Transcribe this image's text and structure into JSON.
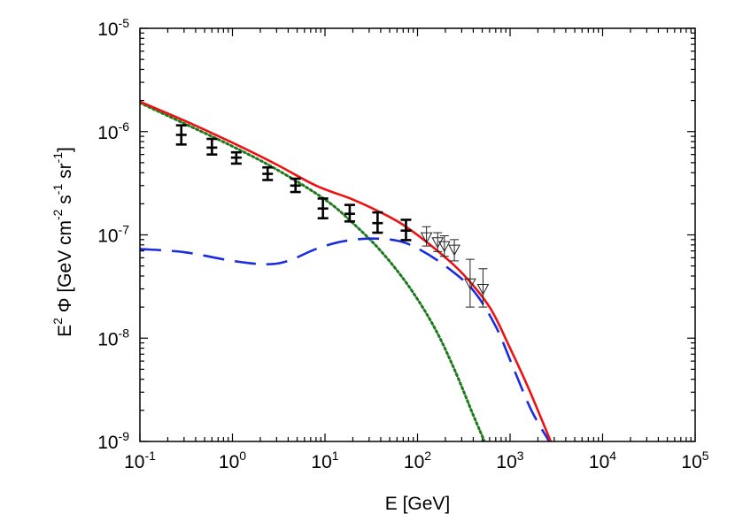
{
  "chart_data": {
    "type": "line",
    "xscale": "log",
    "yscale": "log",
    "xlim": [
      0.1,
      100000
    ],
    "ylim": [
      1e-09,
      1e-05
    ],
    "grid": false,
    "legend": "none",
    "xlabel": "E [GeV]",
    "ylabel": {
      "parts": [
        "E",
        "2",
        " Φ [GeV cm",
        "-2",
        " s",
        "-1",
        " sr",
        "-1",
        "]"
      ]
    },
    "x_ticks": [
      {
        "base": "10",
        "exp": "-1",
        "value": 0.1
      },
      {
        "base": "10",
        "exp": "0",
        "value": 1
      },
      {
        "base": "10",
        "exp": "1",
        "value": 10
      },
      {
        "base": "10",
        "exp": "2",
        "value": 100
      },
      {
        "base": "10",
        "exp": "3",
        "value": 1000
      },
      {
        "base": "10",
        "exp": "4",
        "value": 10000
      },
      {
        "base": "10",
        "exp": "5",
        "value": 100000
      }
    ],
    "y_ticks": [
      {
        "base": "10",
        "exp": "-9",
        "value": 1e-09
      },
      {
        "base": "10",
        "exp": "-8",
        "value": 1e-08
      },
      {
        "base": "10",
        "exp": "-7",
        "value": 1e-07
      },
      {
        "base": "10",
        "exp": "-6",
        "value": 1e-06
      },
      {
        "base": "10",
        "exp": "-5",
        "value": 1e-05
      }
    ],
    "series": [
      {
        "style": "dotted",
        "color": "#1e7a1e",
        "points": [
          [
            0.1,
            1.9e-06
          ],
          [
            0.3,
            1.2e-06
          ],
          [
            1,
            7.2e-07
          ],
          [
            3,
            4.3e-07
          ],
          [
            10,
            2.2e-07
          ],
          [
            20,
            1.3e-07
          ],
          [
            40,
            7e-08
          ],
          [
            80,
            3.2e-08
          ],
          [
            150,
            1.3e-08
          ],
          [
            250,
            5e-09
          ],
          [
            400,
            1.8e-09
          ],
          [
            530,
            1e-09
          ]
        ]
      },
      {
        "style": "dashed",
        "color": "#1a2be0",
        "points": [
          [
            0.1,
            7.3e-08
          ],
          [
            0.3,
            6.8e-08
          ],
          [
            1,
            5.6e-08
          ],
          [
            2.3,
            5.2e-08
          ],
          [
            4,
            5.6e-08
          ],
          [
            8,
            7.3e-08
          ],
          [
            15,
            8.6e-08
          ],
          [
            30,
            9.2e-08
          ],
          [
            60,
            8.8e-08
          ],
          [
            100,
            7.4e-08
          ],
          [
            200,
            5e-08
          ],
          [
            400,
            2.9e-08
          ],
          [
            700,
            1.3e-08
          ],
          [
            1100,
            5e-09
          ],
          [
            1700,
            2e-09
          ],
          [
            2650,
            1e-09
          ]
        ]
      },
      {
        "style": "solid",
        "color": "#ee1111",
        "points": [
          [
            0.1,
            1.95e-06
          ],
          [
            0.3,
            1.28e-06
          ],
          [
            1,
            7.8e-07
          ],
          [
            3,
            4.8e-07
          ],
          [
            8,
            3e-07
          ],
          [
            20,
            2.2e-07
          ],
          [
            40,
            1.65e-07
          ],
          [
            70,
            1.25e-07
          ],
          [
            150,
            7.5e-08
          ],
          [
            300,
            4.3e-08
          ],
          [
            600,
            2e-08
          ],
          [
            1000,
            8e-09
          ],
          [
            1600,
            3.2e-09
          ],
          [
            2750,
            1e-09
          ]
        ]
      }
    ],
    "errorbars_thick": [
      {
        "x": 0.28,
        "y": 9.3e-07,
        "lo": 7.5e-07,
        "hi": 1.15e-06
      },
      {
        "x": 0.6,
        "y": 7e-07,
        "lo": 6e-07,
        "hi": 8.5e-07
      },
      {
        "x": 1.1,
        "y": 5.6e-07,
        "lo": 4.9e-07,
        "hi": 6.3e-07
      },
      {
        "x": 2.4,
        "y": 3.9e-07,
        "lo": 3.4e-07,
        "hi": 4.5e-07
      },
      {
        "x": 4.8,
        "y": 3e-07,
        "lo": 2.6e-07,
        "hi": 3.5e-07
      },
      {
        "x": 9.5,
        "y": 1.8e-07,
        "lo": 1.45e-07,
        "hi": 2.25e-07
      },
      {
        "x": 18.5,
        "y": 1.6e-07,
        "lo": 1.35e-07,
        "hi": 1.95e-07
      },
      {
        "x": 37,
        "y": 1.3e-07,
        "lo": 1.05e-07,
        "hi": 1.65e-07
      },
      {
        "x": 75,
        "y": 1.1e-07,
        "lo": 8.9e-08,
        "hi": 1.4e-07
      }
    ],
    "errorbars_thin": [
      {
        "x": 125,
        "y": 9.5e-08,
        "lo": 7.8e-08,
        "hi": 1.2e-07
      },
      {
        "x": 165,
        "y": 8.5e-08,
        "lo": 6.9e-08,
        "hi": 1.05e-07
      },
      {
        "x": 195,
        "y": 7.8e-08,
        "lo": 6.2e-08,
        "hi": 9.8e-08
      },
      {
        "x": 250,
        "y": 7.2e-08,
        "lo": 5.6e-08,
        "hi": 9e-08
      },
      {
        "x": 370,
        "y": 3.4e-08,
        "lo": 2e-08,
        "hi": 5.8e-08
      },
      {
        "x": 510,
        "y": 3e-08,
        "lo": 2e-08,
        "hi": 4.7e-08
      }
    ]
  }
}
